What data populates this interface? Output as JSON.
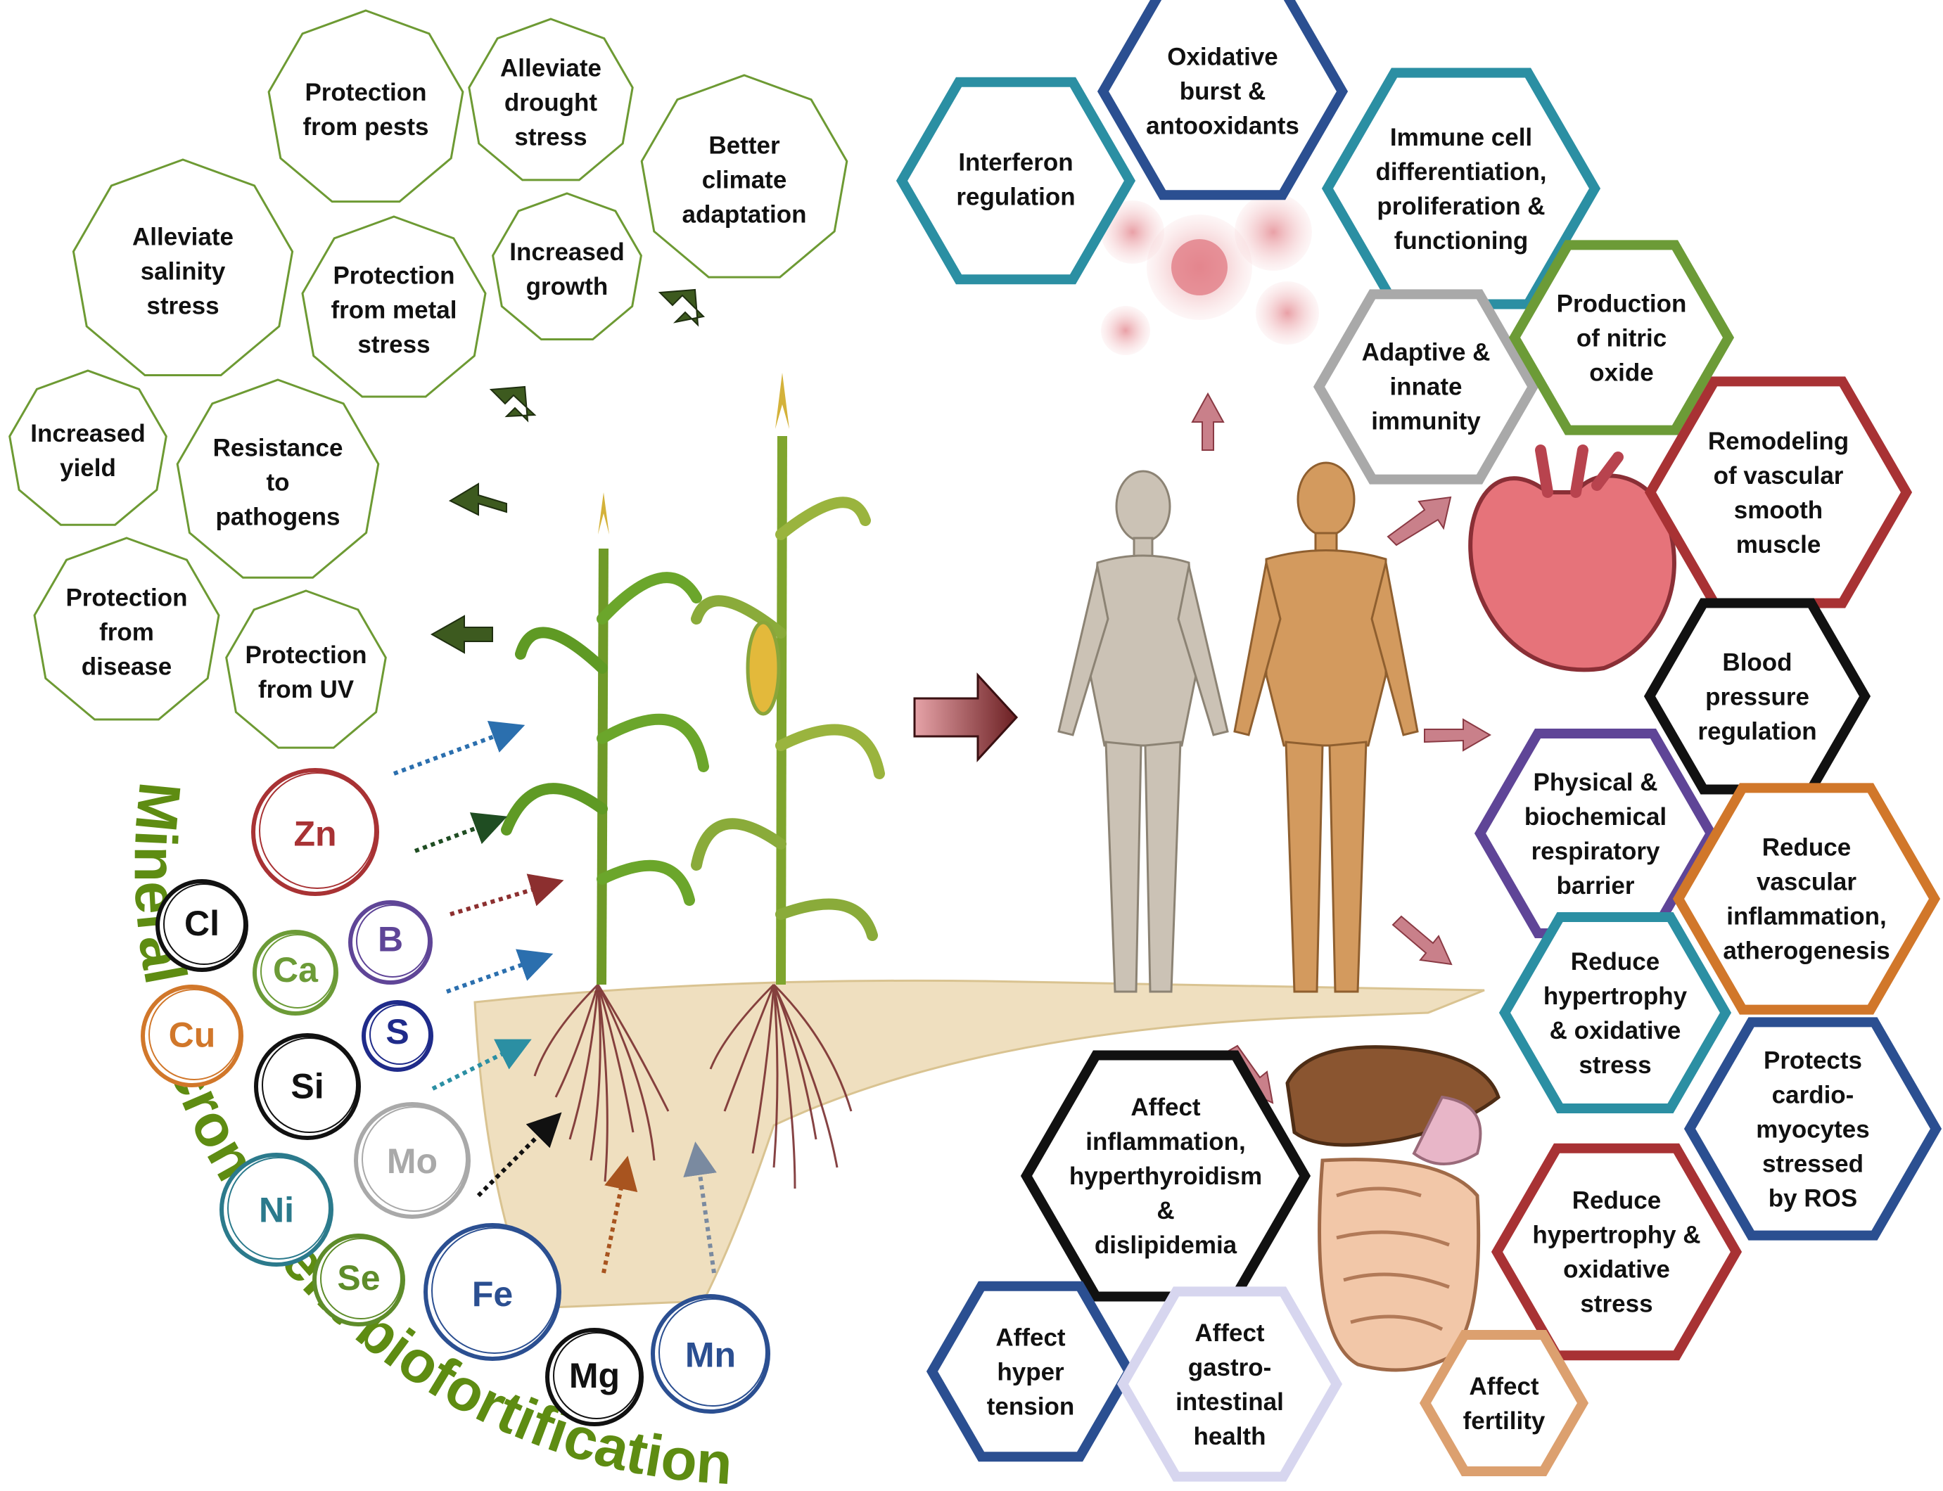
{
  "colors": {
    "plant_green": "#6d9a33",
    "arc_text": "#5e8c12",
    "dark_arrow": "#3d5a1f",
    "pink_arrow": "#c9808a",
    "soil": "#efdfbf",
    "root": "#7a2f30",
    "teal": "#2b8fa3",
    "navy": "#2b4f91",
    "grey": "#a9a9a9",
    "green": "#6c9b37",
    "red": "#a83234",
    "black": "#111111",
    "purple": "#5f4597",
    "orange": "#d1772a",
    "lavender": "#d7d6ef",
    "light_orange": "#dca06f"
  },
  "plant_benefits": [
    {
      "id": "pests",
      "text": "Protection\nfrom pests"
    },
    {
      "id": "drought",
      "text": "Alleviate\ndrought\nstress"
    },
    {
      "id": "climate",
      "text": "Better\nclimate\nadaptation"
    },
    {
      "id": "salinity",
      "text": "Alleviate\nsalinity\nstress"
    },
    {
      "id": "metal",
      "text": "Protection\nfrom metal\nstress"
    },
    {
      "id": "growth",
      "text": "Increased\ngrowth"
    },
    {
      "id": "yield",
      "text": "Increased\nyield"
    },
    {
      "id": "pathogens",
      "text": "Resistance\nto\npathogens"
    },
    {
      "id": "disease",
      "text": "Protection\nfrom\ndisease"
    },
    {
      "id": "uv",
      "text": "Protection\nfrom UV"
    }
  ],
  "micronutrients": [
    {
      "symbol": "Zn",
      "color": "#a83234"
    },
    {
      "symbol": "Cl",
      "color": "#111111"
    },
    {
      "symbol": "Ca",
      "color": "#6c9b37"
    },
    {
      "symbol": "B",
      "color": "#5f4597"
    },
    {
      "symbol": "Cu",
      "color": "#d1772a"
    },
    {
      "symbol": "S",
      "color": "#1f2b8a"
    },
    {
      "symbol": "Si",
      "color": "#111111"
    },
    {
      "symbol": "Mo",
      "color": "#a9a9a9"
    },
    {
      "symbol": "Ni",
      "color": "#2b7a8c"
    },
    {
      "symbol": "Se",
      "color": "#5e8c2a"
    },
    {
      "symbol": "Fe",
      "color": "#2b4f91"
    },
    {
      "symbol": "Mg",
      "color": "#111111"
    },
    {
      "symbol": "Mn",
      "color": "#2b4f91"
    }
  ],
  "arc_title": "Mineral micronutrient biofortification",
  "health_effects": [
    {
      "id": "interferon",
      "text": "Interferon\nregulation",
      "color": "#2b8fa3"
    },
    {
      "id": "oxidative",
      "text": "Oxidative\nburst &\nantooxidants",
      "color": "#2b4f91"
    },
    {
      "id": "immune",
      "text": "Immune cell\ndifferentiation,\nproliferation &\nfunctioning",
      "color": "#2b8fa3"
    },
    {
      "id": "adaptive",
      "text": "Adaptive &\ninnate\nimmunity",
      "color": "#a9a9a9"
    },
    {
      "id": "nitric",
      "text": "Production\nof nitric\noxide",
      "color": "#6c9b37"
    },
    {
      "id": "vascular",
      "text": "Remodeling\nof vascular\nsmooth\nmuscle",
      "color": "#a83234"
    },
    {
      "id": "blood",
      "text": "Blood\npressure\nregulation",
      "color": "#111111"
    },
    {
      "id": "respiratory",
      "text": "Physical &\nbiochemical\nrespiratory\nbarrier",
      "color": "#5f4597"
    },
    {
      "id": "reduce_vasc",
      "text": "Reduce\nvascular\ninflammation,\natherogenesis",
      "color": "#d1772a"
    },
    {
      "id": "hypertrophy1",
      "text": "Reduce\nhypertrophy\n& oxidative\nstress",
      "color": "#2b8fa3"
    },
    {
      "id": "cardio",
      "text": "Protects\ncardio-\nmyocytes\nstressed\nby ROS",
      "color": "#2b4f91"
    },
    {
      "id": "hypertrophy2",
      "text": "Reduce\nhypertrophy &\noxidative\nstress",
      "color": "#a83234"
    },
    {
      "id": "inflammation",
      "text": "Affect\ninflammation,\nhyperthyroidism\n&\ndislipidemia",
      "color": "#111111"
    },
    {
      "id": "hypertension",
      "text": "Affect\nhyper\ntension",
      "color": "#2b4f91"
    },
    {
      "id": "gastro",
      "text": "Affect\ngastro-\nintestinal\nhealth",
      "color": "#d7d6ef"
    },
    {
      "id": "fertility",
      "text": "Affect\nfertility",
      "color": "#dca06f"
    }
  ]
}
